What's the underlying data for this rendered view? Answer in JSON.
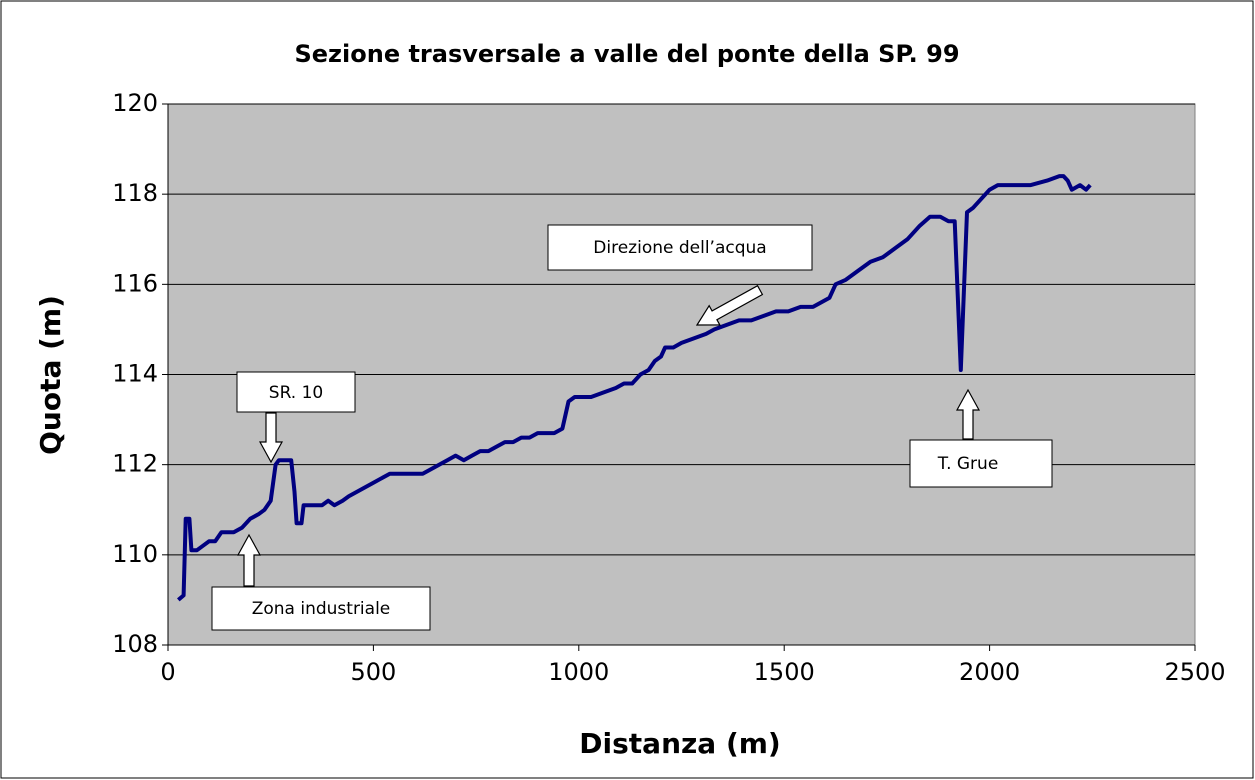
{
  "chart_data": {
    "type": "line",
    "title": "Sezione trasversale a valle del ponte della SP. 99",
    "x_label": "Distanza (m)",
    "y_label": "Quota (m)",
    "xlim": [
      0,
      2500
    ],
    "xticks": [
      0,
      500,
      1000,
      1500,
      2000,
      2500
    ],
    "ylim": [
      108,
      120
    ],
    "yticks": [
      108,
      110,
      112,
      114,
      116,
      118,
      120
    ],
    "grid": true,
    "color": "#000080",
    "annotations": [
      "SR. 10",
      "Zona industriale",
      "Direzione dell’acqua",
      "T. Grue"
    ],
    "x": [
      25,
      38,
      43,
      52,
      57,
      70,
      85,
      100,
      115,
      130,
      160,
      180,
      200,
      220,
      235,
      250,
      262,
      270,
      285,
      300,
      308,
      313,
      325,
      330,
      360,
      375,
      390,
      405,
      425,
      440,
      460,
      480,
      500,
      520,
      540,
      560,
      580,
      600,
      620,
      640,
      660,
      680,
      700,
      720,
      740,
      760,
      780,
      800,
      820,
      840,
      860,
      880,
      900,
      920,
      940,
      960,
      975,
      990,
      1010,
      1030,
      1060,
      1090,
      1110,
      1130,
      1150,
      1170,
      1185,
      1200,
      1210,
      1230,
      1250,
      1280,
      1310,
      1330,
      1360,
      1390,
      1420,
      1450,
      1480,
      1510,
      1540,
      1570,
      1590,
      1610,
      1625,
      1650,
      1680,
      1710,
      1740,
      1770,
      1800,
      1830,
      1855,
      1880,
      1900,
      1915,
      1930,
      1945,
      1960,
      1980,
      2000,
      2020,
      2060,
      2100,
      2140,
      2170,
      2180,
      2190,
      2200,
      2220,
      2235,
      2245
    ],
    "y": [
      109.0,
      109.1,
      110.8,
      110.8,
      110.1,
      110.1,
      110.2,
      110.3,
      110.3,
      110.5,
      110.5,
      110.6,
      110.8,
      110.9,
      111.0,
      111.2,
      112.0,
      112.1,
      112.1,
      112.1,
      111.4,
      110.7,
      110.7,
      111.1,
      111.1,
      111.1,
      111.2,
      111.1,
      111.2,
      111.3,
      111.4,
      111.5,
      111.6,
      111.7,
      111.8,
      111.8,
      111.8,
      111.8,
      111.8,
      111.9,
      112.0,
      112.1,
      112.2,
      112.1,
      112.2,
      112.3,
      112.3,
      112.4,
      112.5,
      112.5,
      112.6,
      112.6,
      112.7,
      112.7,
      112.7,
      112.8,
      113.4,
      113.5,
      113.5,
      113.5,
      113.6,
      113.7,
      113.8,
      113.8,
      114.0,
      114.1,
      114.3,
      114.4,
      114.6,
      114.6,
      114.7,
      114.8,
      114.9,
      115.0,
      115.1,
      115.2,
      115.2,
      115.3,
      115.4,
      115.4,
      115.5,
      115.5,
      115.6,
      115.7,
      116.0,
      116.1,
      116.3,
      116.5,
      116.6,
      116.8,
      117.0,
      117.3,
      117.5,
      117.5,
      117.4,
      117.4,
      114.1,
      117.6,
      117.7,
      117.9,
      118.1,
      118.2,
      118.2,
      118.2,
      118.3,
      118.4,
      118.4,
      118.3,
      118.1,
      118.2,
      118.1,
      118.2
    ]
  }
}
